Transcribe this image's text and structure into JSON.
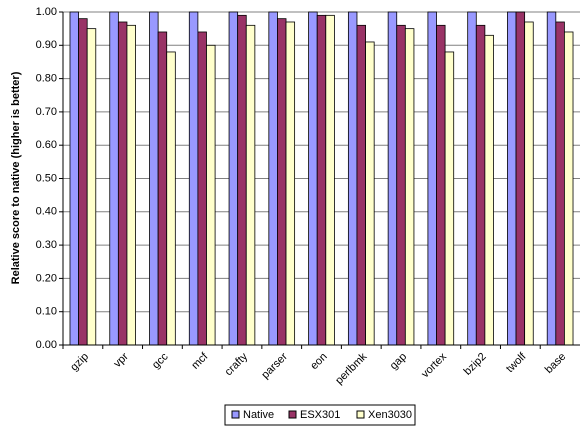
{
  "chart_data": {
    "type": "bar",
    "y_label": "Relative score to native (higher is better)",
    "categories": [
      "gzip",
      "vpr",
      "gcc",
      "mcf",
      "crafty",
      "parser",
      "eon",
      "perlbmk",
      "gap",
      "vortex",
      "bzip2",
      "twolf",
      "base"
    ],
    "series": [
      {
        "name": "Native",
        "color": "#9999ff",
        "values": [
          1.0,
          1.0,
          1.0,
          1.0,
          1.0,
          1.0,
          1.0,
          1.0,
          1.0,
          1.0,
          1.0,
          1.0,
          1.0
        ]
      },
      {
        "name": "ESX301",
        "color": "#993366",
        "values": [
          0.98,
          0.97,
          0.94,
          0.94,
          0.99,
          0.98,
          0.99,
          0.96,
          0.96,
          0.96,
          0.96,
          1.0,
          0.97
        ]
      },
      {
        "name": "Xen3030",
        "color": "#ffffcc",
        "values": [
          0.95,
          0.96,
          0.88,
          0.9,
          0.96,
          0.97,
          0.99,
          0.91,
          0.95,
          0.88,
          0.93,
          0.97,
          0.94
        ]
      }
    ],
    "ylim": [
      0,
      1
    ],
    "yticks": [
      {
        "value": 0,
        "label": "0.00"
      },
      {
        "value": 0.1,
        "label": "0.10"
      },
      {
        "value": 0.2,
        "label": "0.20"
      },
      {
        "value": 0.3,
        "label": "0.30"
      },
      {
        "value": 0.4,
        "label": "0.40"
      },
      {
        "value": 0.5,
        "label": "0.50"
      },
      {
        "value": 0.6,
        "label": "0.60"
      },
      {
        "value": 0.7,
        "label": "0.70"
      },
      {
        "value": 0.8,
        "label": "0.80"
      },
      {
        "value": 0.9,
        "label": "0.90"
      },
      {
        "value": 1,
        "label": "1.00"
      }
    ],
    "grid": true,
    "legend": "bottom"
  }
}
